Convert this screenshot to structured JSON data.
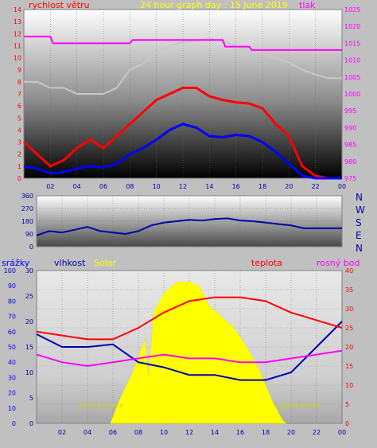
{
  "colors": {
    "wind": "#ff0000",
    "wind_mean": "#0000ff",
    "pressure": "#ff00ff",
    "humidity_pressure_axis": "#ff00ff",
    "temperature": "#ff0000",
    "humidity": "#0000b0",
    "dewpoint": "#ff00ff",
    "solar": "#ffff00",
    "sky": "#c8c8c8",
    "direction": "#0000aa"
  },
  "top": {
    "left_title": "rychlost větru",
    "center_title": "24 hour graph day : 15 June 2019",
    "right_title": "tlak"
  },
  "middle": {
    "compass": [
      "N",
      "W",
      "S",
      "E",
      "N"
    ]
  },
  "bottom": {
    "label_rain": "srážky",
    "label_humidity": "vlhkost",
    "label_solar": "Solar",
    "label_temperature": "teplota",
    "label_dewpoint": "rosný bod",
    "sunrise": "východ slunce",
    "sunset": "západ slunce"
  },
  "chart_data": [
    {
      "type": "line",
      "name": "wind_and_pressure",
      "x_ticks": [
        "02",
        "04",
        "06",
        "08",
        "10",
        "12",
        "14",
        "16",
        "18",
        "20",
        "22",
        "00"
      ],
      "left_axis": {
        "label": "rychlost větru",
        "ticks": [
          0,
          1,
          2,
          3,
          4,
          5,
          6,
          7,
          8,
          9,
          10,
          11,
          12,
          13,
          14
        ],
        "ylim": [
          0,
          14
        ]
      },
      "right_axis": {
        "label": "tlak",
        "ticks": [
          975,
          980,
          985,
          990,
          995,
          1000,
          1005,
          1010,
          1015,
          1020,
          1025
        ],
        "ylim": [
          975,
          1025
        ]
      },
      "series": [
        {
          "name": "gust",
          "axis": "left",
          "color": "#ff0000",
          "x": [
            0,
            1,
            2,
            3,
            4,
            5,
            6,
            7,
            8,
            9,
            10,
            11,
            12,
            13,
            14,
            15,
            16,
            17,
            18,
            19,
            20,
            21,
            22,
            23,
            24
          ],
          "y": [
            3.0,
            2.0,
            1.0,
            1.5,
            2.5,
            3.2,
            2.5,
            3.5,
            4.5,
            5.5,
            6.5,
            7.0,
            7.5,
            7.5,
            6.8,
            6.5,
            6.3,
            6.2,
            5.8,
            4.5,
            3.5,
            1.0,
            0.2,
            0.0,
            0.0
          ]
        },
        {
          "name": "mean",
          "axis": "left",
          "color": "#0000ff",
          "x": [
            0,
            1,
            2,
            3,
            4,
            5,
            6,
            7,
            8,
            9,
            10,
            11,
            12,
            13,
            14,
            15,
            16,
            17,
            18,
            19,
            20,
            21,
            22,
            23,
            24
          ],
          "y": [
            1.0,
            0.8,
            0.4,
            0.5,
            0.8,
            1.0,
            0.9,
            1.2,
            2.0,
            2.5,
            3.2,
            4.0,
            4.5,
            4.2,
            3.5,
            3.4,
            3.6,
            3.5,
            3.0,
            2.2,
            1.2,
            0.2,
            0.0,
            0.0,
            0.0
          ]
        },
        {
          "name": "pressure",
          "axis": "right",
          "color": "#ff00ff",
          "x": [
            0,
            2.0,
            2.2,
            8.0,
            8.2,
            15.0,
            15.2,
            17.0,
            17.2,
            24
          ],
          "y": [
            1017,
            1017,
            1015,
            1015,
            1016,
            1016,
            1014,
            1014,
            1013,
            1013
          ]
        },
        {
          "name": "cloud",
          "axis": "left",
          "color": "#c8c8c8",
          "x": [
            0,
            1,
            2,
            3,
            4,
            5,
            6,
            7,
            8,
            9,
            10,
            11,
            12,
            13,
            14,
            15,
            16,
            17,
            18,
            19,
            20,
            21,
            22,
            23,
            24
          ],
          "y": [
            8.0,
            8.0,
            7.5,
            7.5,
            7.0,
            7.0,
            7.0,
            7.5,
            9.0,
            9.5,
            10.5,
            11.0,
            11.3,
            11.4,
            11.6,
            11.4,
            11.0,
            10.6,
            10.3,
            10.0,
            9.6,
            9.0,
            8.6,
            8.3,
            8.3
          ]
        }
      ]
    },
    {
      "type": "scatter",
      "name": "wind_direction",
      "y_ticks": [
        0,
        90,
        180,
        270,
        360
      ],
      "ylim": [
        0,
        360
      ],
      "x": [
        0,
        1,
        2,
        3,
        4,
        5,
        6,
        7,
        8,
        9,
        10,
        11,
        12,
        13,
        14,
        15,
        16,
        17,
        18,
        19,
        20,
        21,
        22,
        23,
        24
      ],
      "y": [
        80,
        110,
        100,
        120,
        140,
        110,
        100,
        90,
        110,
        150,
        170,
        180,
        190,
        185,
        195,
        200,
        185,
        180,
        170,
        160,
        150,
        130,
        130,
        130,
        130
      ]
    },
    {
      "type": "area",
      "name": "rain_humidity_solar_temperature",
      "x_ticks": [
        "02",
        "04",
        "06",
        "08",
        "10",
        "12",
        "14",
        "16",
        "18",
        "20",
        "22",
        "00"
      ],
      "left_axis_rain": {
        "ticks": [
          0,
          10,
          20,
          30,
          40,
          50,
          60,
          70,
          80,
          90,
          100
        ],
        "ylim": [
          0,
          100
        ]
      },
      "left_axis_humidity": {
        "ticks": [
          0,
          5,
          10,
          15,
          20,
          25,
          30
        ],
        "ylim": [
          0,
          30
        ]
      },
      "right_axis": {
        "ticks": [
          0,
          5,
          10,
          15,
          20,
          25,
          30,
          35,
          40
        ],
        "ylim": [
          0,
          40
        ]
      },
      "series": [
        {
          "name": "solar",
          "color": "#ffff00",
          "x": [
            5.8,
            6.5,
            7.5,
            8.3,
            8.5,
            8.8,
            9.2,
            10.0,
            11.0,
            12.0,
            12.8,
            13.5,
            14.5,
            15.5,
            16.5,
            17.5,
            18.5,
            19.3,
            19.6
          ],
          "y": [
            0,
            6,
            13,
            20,
            22,
            12,
            29,
            34,
            37,
            37,
            36,
            31,
            28,
            25,
            20,
            14,
            6,
            1,
            0
          ]
        },
        {
          "name": "temperature",
          "color": "#ff0000",
          "x": [
            0,
            2,
            4,
            6,
            8,
            10,
            12,
            14,
            16,
            18,
            20,
            22,
            24
          ],
          "y": [
            24,
            23,
            22,
            22,
            25,
            29,
            32,
            33,
            33,
            32,
            29,
            27,
            25
          ]
        },
        {
          "name": "humidity",
          "color": "#0000b0",
          "x": [
            0,
            2,
            4,
            6,
            8,
            10,
            12,
            14,
            16,
            18,
            20,
            22,
            24
          ],
          "y": [
            17.5,
            15,
            15,
            15.5,
            12,
            11,
            9.5,
            9.5,
            8.5,
            8.5,
            10,
            15,
            20
          ]
        },
        {
          "name": "dewpoint",
          "color": "#ff00ff",
          "x": [
            0,
            2,
            4,
            6,
            8,
            10,
            12,
            14,
            16,
            18,
            20,
            22,
            24
          ],
          "y": [
            18,
            16,
            15,
            16,
            17,
            18,
            17,
            17,
            16,
            16,
            17,
            18,
            19
          ]
        }
      ]
    }
  ]
}
